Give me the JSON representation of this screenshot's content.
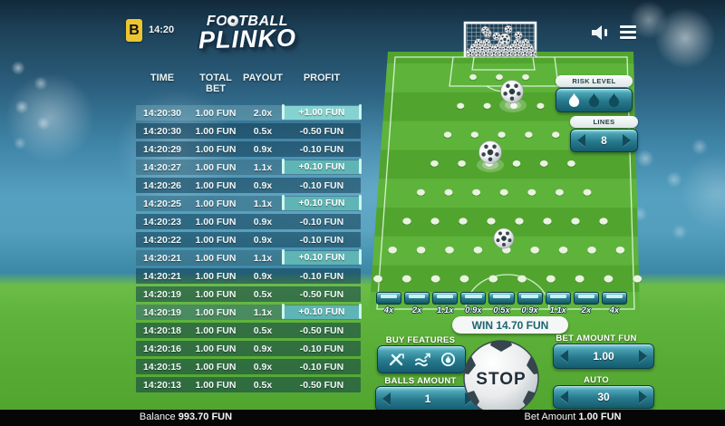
{
  "header": {
    "badge": "B",
    "time": "14:20"
  },
  "logo": {
    "line1_pre": "FO",
    "line1_post": "TBALL",
    "line2": "PLINKO"
  },
  "history": {
    "columns": [
      "TIME",
      "TOTAL BET",
      "PAYOUT",
      "PROFIT"
    ],
    "rows": [
      {
        "time": "14:20:30",
        "total_bet": "1.00 FUN",
        "payout": "2.0x",
        "profit": "+1.00 FUN",
        "win": true
      },
      {
        "time": "14:20:30",
        "total_bet": "1.00 FUN",
        "payout": "0.5x",
        "profit": "-0.50 FUN",
        "win": false
      },
      {
        "time": "14:20:29",
        "total_bet": "1.00 FUN",
        "payout": "0.9x",
        "profit": "-0.10 FUN",
        "win": false
      },
      {
        "time": "14:20:27",
        "total_bet": "1.00 FUN",
        "payout": "1.1x",
        "profit": "+0.10 FUN",
        "win": true
      },
      {
        "time": "14:20:26",
        "total_bet": "1.00 FUN",
        "payout": "0.9x",
        "profit": "-0.10 FUN",
        "win": false
      },
      {
        "time": "14:20:25",
        "total_bet": "1.00 FUN",
        "payout": "1.1x",
        "profit": "+0.10 FUN",
        "win": true
      },
      {
        "time": "14:20:23",
        "total_bet": "1.00 FUN",
        "payout": "0.9x",
        "profit": "-0.10 FUN",
        "win": false
      },
      {
        "time": "14:20:22",
        "total_bet": "1.00 FUN",
        "payout": "0.9x",
        "profit": "-0.10 FUN",
        "win": false
      },
      {
        "time": "14:20:21",
        "total_bet": "1.00 FUN",
        "payout": "1.1x",
        "profit": "+0.10 FUN",
        "win": true
      },
      {
        "time": "14:20:21",
        "total_bet": "1.00 FUN",
        "payout": "0.9x",
        "profit": "-0.10 FUN",
        "win": false
      },
      {
        "time": "14:20:19",
        "total_bet": "1.00 FUN",
        "payout": "0.5x",
        "profit": "-0.50 FUN",
        "win": false
      },
      {
        "time": "14:20:19",
        "total_bet": "1.00 FUN",
        "payout": "1.1x",
        "profit": "+0.10 FUN",
        "win": true
      },
      {
        "time": "14:20:18",
        "total_bet": "1.00 FUN",
        "payout": "0.5x",
        "profit": "-0.50 FUN",
        "win": false
      },
      {
        "time": "14:20:16",
        "total_bet": "1.00 FUN",
        "payout": "0.9x",
        "profit": "-0.10 FUN",
        "win": false
      },
      {
        "time": "14:20:15",
        "total_bet": "1.00 FUN",
        "payout": "0.9x",
        "profit": "-0.10 FUN",
        "win": false
      },
      {
        "time": "14:20:13",
        "total_bet": "1.00 FUN",
        "payout": "0.5x",
        "profit": "-0.50 FUN",
        "win": false
      }
    ]
  },
  "panels": {
    "risk_level": {
      "label": "RISK LEVEL",
      "levels": 3,
      "selected_index": 0
    },
    "lines": {
      "label": "LINES",
      "value": "8"
    }
  },
  "board": {
    "peg_rows": 8,
    "balls_in_play": 3,
    "multipliers": [
      "4x",
      "2x",
      "1.1x",
      "0.9x",
      "0.5x",
      "0.9x",
      "1.1x",
      "2x",
      "4x"
    ],
    "win_banner": "WIN 14.70 FUN"
  },
  "controls": {
    "buy_features": {
      "label": "BUY FEATURES",
      "icons": [
        "crossed-tools-icon",
        "speed-boost-icon",
        "flame-ball-icon"
      ]
    },
    "balls_amount": {
      "label": "BALLS AMOUNT",
      "value": "1"
    },
    "stop": {
      "label": "STOP"
    },
    "bet_amount": {
      "label": "BET AMOUNT FUN",
      "value": "1.00"
    },
    "auto": {
      "label": "AUTO",
      "value": "30"
    }
  },
  "footer": {
    "balance_label": "Balance",
    "balance_value": "993.70 FUN",
    "bet_label": "Bet Amount",
    "bet_value": "1.00 FUN"
  },
  "colors": {
    "accent_teal": "#27798d",
    "panel_border": "#0e3d4c",
    "win_pill": "#5fb5b5",
    "win_pill_bright": "#85d3d0",
    "badge_yellow": "#ecc62f",
    "field_green_light": "#5eb43a",
    "field_green_dark": "#51a52e",
    "footer_bg": "#060606"
  }
}
